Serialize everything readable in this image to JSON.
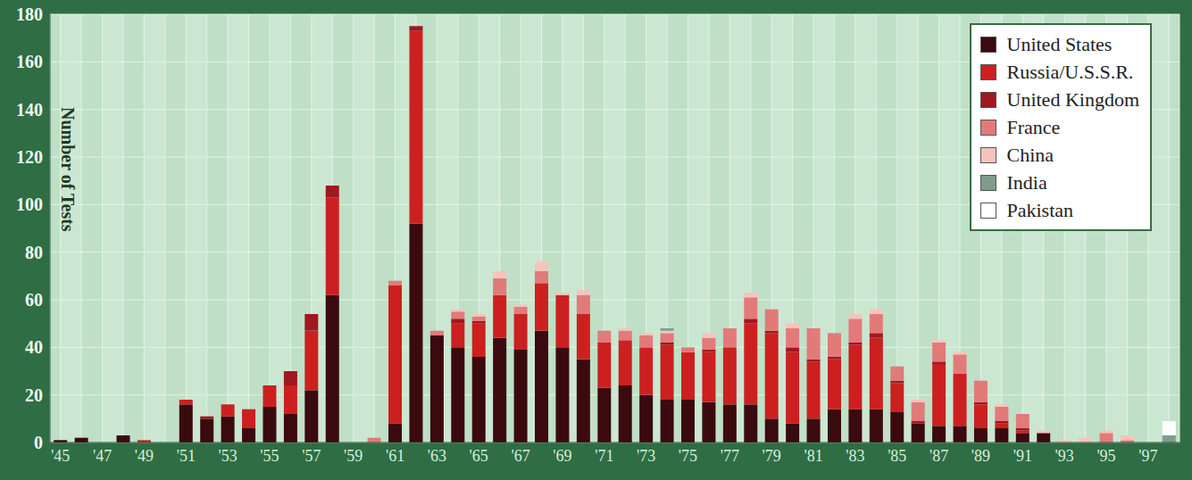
{
  "chart_data": {
    "type": "bar",
    "y_label": "Number of Tests",
    "categories": [
      "'45",
      null,
      "'47",
      null,
      "'49",
      null,
      "'51",
      null,
      "'53",
      null,
      "'55",
      null,
      "'57",
      null,
      "'59",
      null,
      "'61",
      null,
      "'63",
      null,
      "'65",
      null,
      "'67",
      null,
      "'69",
      null,
      "'71",
      null,
      "'73",
      null,
      "'75",
      null,
      "'77",
      null,
      "'79",
      null,
      "'81",
      null,
      "'83",
      null,
      "'85",
      null,
      "'87",
      null,
      "'89",
      null,
      "'91",
      null,
      "'93",
      null,
      "'95",
      null,
      "'97",
      null
    ],
    "series": [
      {
        "name": "United States",
        "color": "#3a0a0e",
        "values": [
          1,
          2,
          0,
          3,
          0,
          0,
          16,
          10,
          11,
          6,
          15,
          12,
          22,
          62,
          0,
          0,
          8,
          92,
          45,
          40,
          36,
          44,
          39,
          47,
          40,
          35,
          23,
          24,
          20,
          18,
          18,
          17,
          16,
          16,
          10,
          8,
          10,
          14,
          14,
          14,
          13,
          8,
          7,
          7,
          6,
          6,
          4,
          4,
          0,
          0,
          0,
          0,
          0,
          0
        ]
      },
      {
        "name": "Russia/U.S.S.R.",
        "color": "#cc2020",
        "values": [
          0,
          0,
          0,
          0,
          1,
          0,
          2,
          0,
          5,
          8,
          9,
          12,
          25,
          41,
          0,
          0,
          58,
          81,
          0,
          10,
          14,
          18,
          15,
          20,
          22,
          19,
          19,
          19,
          20,
          23,
          20,
          21,
          24,
          34,
          36,
          30,
          24,
          21,
          27,
          30,
          12,
          0,
          26,
          22,
          10,
          2,
          1,
          0,
          0,
          0,
          0,
          0,
          0,
          0
        ]
      },
      {
        "name": "United Kingdom",
        "color": "#a01820",
        "values": [
          0,
          0,
          0,
          0,
          0,
          0,
          0,
          1,
          0,
          0,
          0,
          6,
          7,
          5,
          0,
          0,
          0,
          2,
          0,
          2,
          1,
          0,
          0,
          0,
          0,
          0,
          0,
          0,
          0,
          1,
          0,
          1,
          0,
          2,
          1,
          2,
          1,
          1,
          1,
          2,
          1,
          1,
          1,
          0,
          1,
          1,
          1,
          0,
          0,
          0,
          0,
          0,
          0,
          0
        ]
      },
      {
        "name": "France",
        "color": "#e27a7a",
        "values": [
          0,
          0,
          0,
          0,
          0,
          0,
          0,
          0,
          0,
          0,
          0,
          0,
          0,
          0,
          0,
          2,
          2,
          0,
          2,
          3,
          2,
          7,
          3,
          5,
          0,
          8,
          5,
          4,
          5,
          4,
          2,
          5,
          8,
          9,
          9,
          8,
          13,
          10,
          10,
          8,
          6,
          8,
          8,
          8,
          9,
          6,
          6,
          0,
          0,
          0,
          4,
          1,
          0,
          0
        ]
      },
      {
        "name": "China",
        "color": "#f5c4bc",
        "values": [
          0,
          0,
          0,
          0,
          0,
          0,
          0,
          0,
          0,
          0,
          0,
          0,
          0,
          0,
          0,
          0,
          0,
          0,
          0,
          1,
          1,
          3,
          1,
          4,
          1,
          2,
          0,
          1,
          1,
          1,
          0,
          2,
          0,
          2,
          0,
          2,
          0,
          0,
          2,
          2,
          0,
          1,
          1,
          1,
          0,
          1,
          0,
          1,
          1,
          2,
          1,
          2,
          0,
          0
        ]
      },
      {
        "name": "India",
        "color": "#7f9c8c",
        "values": [
          0,
          0,
          0,
          0,
          0,
          0,
          0,
          0,
          0,
          0,
          0,
          0,
          0,
          0,
          0,
          0,
          0,
          0,
          0,
          0,
          0,
          0,
          0,
          0,
          0,
          0,
          0,
          0,
          0,
          1,
          0,
          0,
          0,
          0,
          0,
          0,
          0,
          0,
          0,
          0,
          0,
          0,
          0,
          0,
          0,
          0,
          0,
          0,
          0,
          0,
          0,
          0,
          0,
          3
        ]
      },
      {
        "name": "Pakistan",
        "color": "#ffffff",
        "values": [
          0,
          0,
          0,
          0,
          0,
          0,
          0,
          0,
          0,
          0,
          0,
          0,
          0,
          0,
          0,
          0,
          0,
          0,
          0,
          0,
          0,
          0,
          0,
          0,
          0,
          0,
          0,
          0,
          0,
          0,
          0,
          0,
          0,
          0,
          0,
          0,
          0,
          0,
          0,
          0,
          0,
          0,
          0,
          0,
          0,
          0,
          0,
          0,
          0,
          0,
          0,
          0,
          0,
          6
        ]
      }
    ],
    "ylim": [
      0,
      180
    ],
    "yticks": [
      0,
      20,
      40,
      60,
      80,
      100,
      120,
      140,
      160,
      180
    ],
    "grid": true,
    "stacked": true,
    "legend": "upper right"
  }
}
